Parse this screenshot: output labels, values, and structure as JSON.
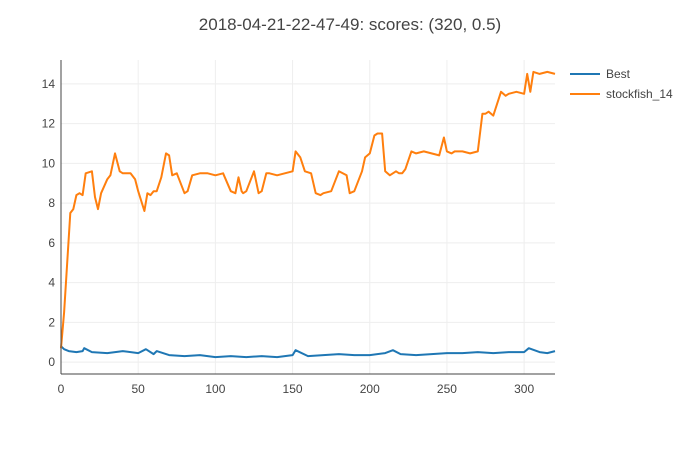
{
  "chart_data": {
    "type": "line",
    "title": "2018-04-21-22-47-49: scores: (320, 0.5)",
    "xlabel": "",
    "ylabel": "",
    "xlim": [
      0,
      320
    ],
    "ylim": [
      -0.6,
      15.2
    ],
    "xticks": [
      0,
      50,
      100,
      150,
      200,
      250,
      300
    ],
    "yticks": [
      0,
      2,
      4,
      6,
      8,
      10,
      12,
      14
    ],
    "grid": true,
    "legend_position": "top-right",
    "series": [
      {
        "name": "Best",
        "color": "#1f77b4",
        "x": [
          0,
          2,
          5,
          10,
          14,
          15,
          20,
          30,
          40,
          50,
          55,
          60,
          62,
          70,
          80,
          90,
          100,
          110,
          120,
          130,
          140,
          150,
          152,
          160,
          170,
          180,
          190,
          200,
          210,
          215,
          220,
          230,
          240,
          250,
          260,
          270,
          280,
          290,
          300,
          303,
          310,
          315,
          320
        ],
        "values": [
          0.8,
          0.65,
          0.55,
          0.5,
          0.55,
          0.7,
          0.5,
          0.45,
          0.55,
          0.45,
          0.65,
          0.4,
          0.55,
          0.35,
          0.3,
          0.35,
          0.25,
          0.3,
          0.25,
          0.3,
          0.25,
          0.35,
          0.6,
          0.3,
          0.35,
          0.4,
          0.35,
          0.35,
          0.45,
          0.6,
          0.4,
          0.35,
          0.4,
          0.45,
          0.45,
          0.5,
          0.45,
          0.5,
          0.5,
          0.7,
          0.5,
          0.45,
          0.55
        ]
      },
      {
        "name": "stockfish_14",
        "color": "#ff7f0e",
        "x": [
          0,
          2,
          4,
          6,
          8,
          10,
          12,
          14,
          16,
          20,
          22,
          24,
          26,
          30,
          32,
          35,
          38,
          40,
          45,
          48,
          50,
          54,
          56,
          58,
          60,
          62,
          65,
          68,
          70,
          72,
          75,
          80,
          82,
          85,
          90,
          95,
          100,
          105,
          110,
          113,
          115,
          117,
          118,
          120,
          125,
          128,
          130,
          133,
          135,
          140,
          145,
          150,
          152,
          155,
          158,
          162,
          165,
          168,
          170,
          175,
          180,
          185,
          187,
          190,
          195,
          197,
          200,
          203,
          205,
          208,
          210,
          213,
          215,
          217,
          219,
          221,
          223,
          227,
          230,
          235,
          240,
          245,
          248,
          250,
          253,
          255,
          260,
          265,
          270,
          273,
          275,
          277,
          280,
          285,
          288,
          290,
          295,
          300,
          302,
          304,
          306,
          310,
          315,
          320
        ],
        "values": [
          0.7,
          2.5,
          5.0,
          7.5,
          7.7,
          8.4,
          8.5,
          8.4,
          9.5,
          9.6,
          8.3,
          7.7,
          8.5,
          9.2,
          9.4,
          10.5,
          9.6,
          9.5,
          9.5,
          9.2,
          8.6,
          7.6,
          8.5,
          8.4,
          8.6,
          8.6,
          9.3,
          10.5,
          10.4,
          9.4,
          9.5,
          8.5,
          8.6,
          9.4,
          9.5,
          9.5,
          9.4,
          9.5,
          8.6,
          8.5,
          9.3,
          8.6,
          8.5,
          8.6,
          9.6,
          8.5,
          8.6,
          9.5,
          9.5,
          9.4,
          9.5,
          9.6,
          10.6,
          10.3,
          9.6,
          9.5,
          8.5,
          8.4,
          8.5,
          8.6,
          9.6,
          9.4,
          8.5,
          8.6,
          9.6,
          10.3,
          10.5,
          11.4,
          11.5,
          11.5,
          9.6,
          9.4,
          9.5,
          9.6,
          9.5,
          9.5,
          9.7,
          10.6,
          10.5,
          10.6,
          10.5,
          10.4,
          11.3,
          10.6,
          10.5,
          10.6,
          10.6,
          10.5,
          10.6,
          12.5,
          12.5,
          12.6,
          12.4,
          13.6,
          13.4,
          13.5,
          13.6,
          13.5,
          14.5,
          13.6,
          14.6,
          14.5,
          14.6,
          14.5
        ]
      }
    ]
  }
}
